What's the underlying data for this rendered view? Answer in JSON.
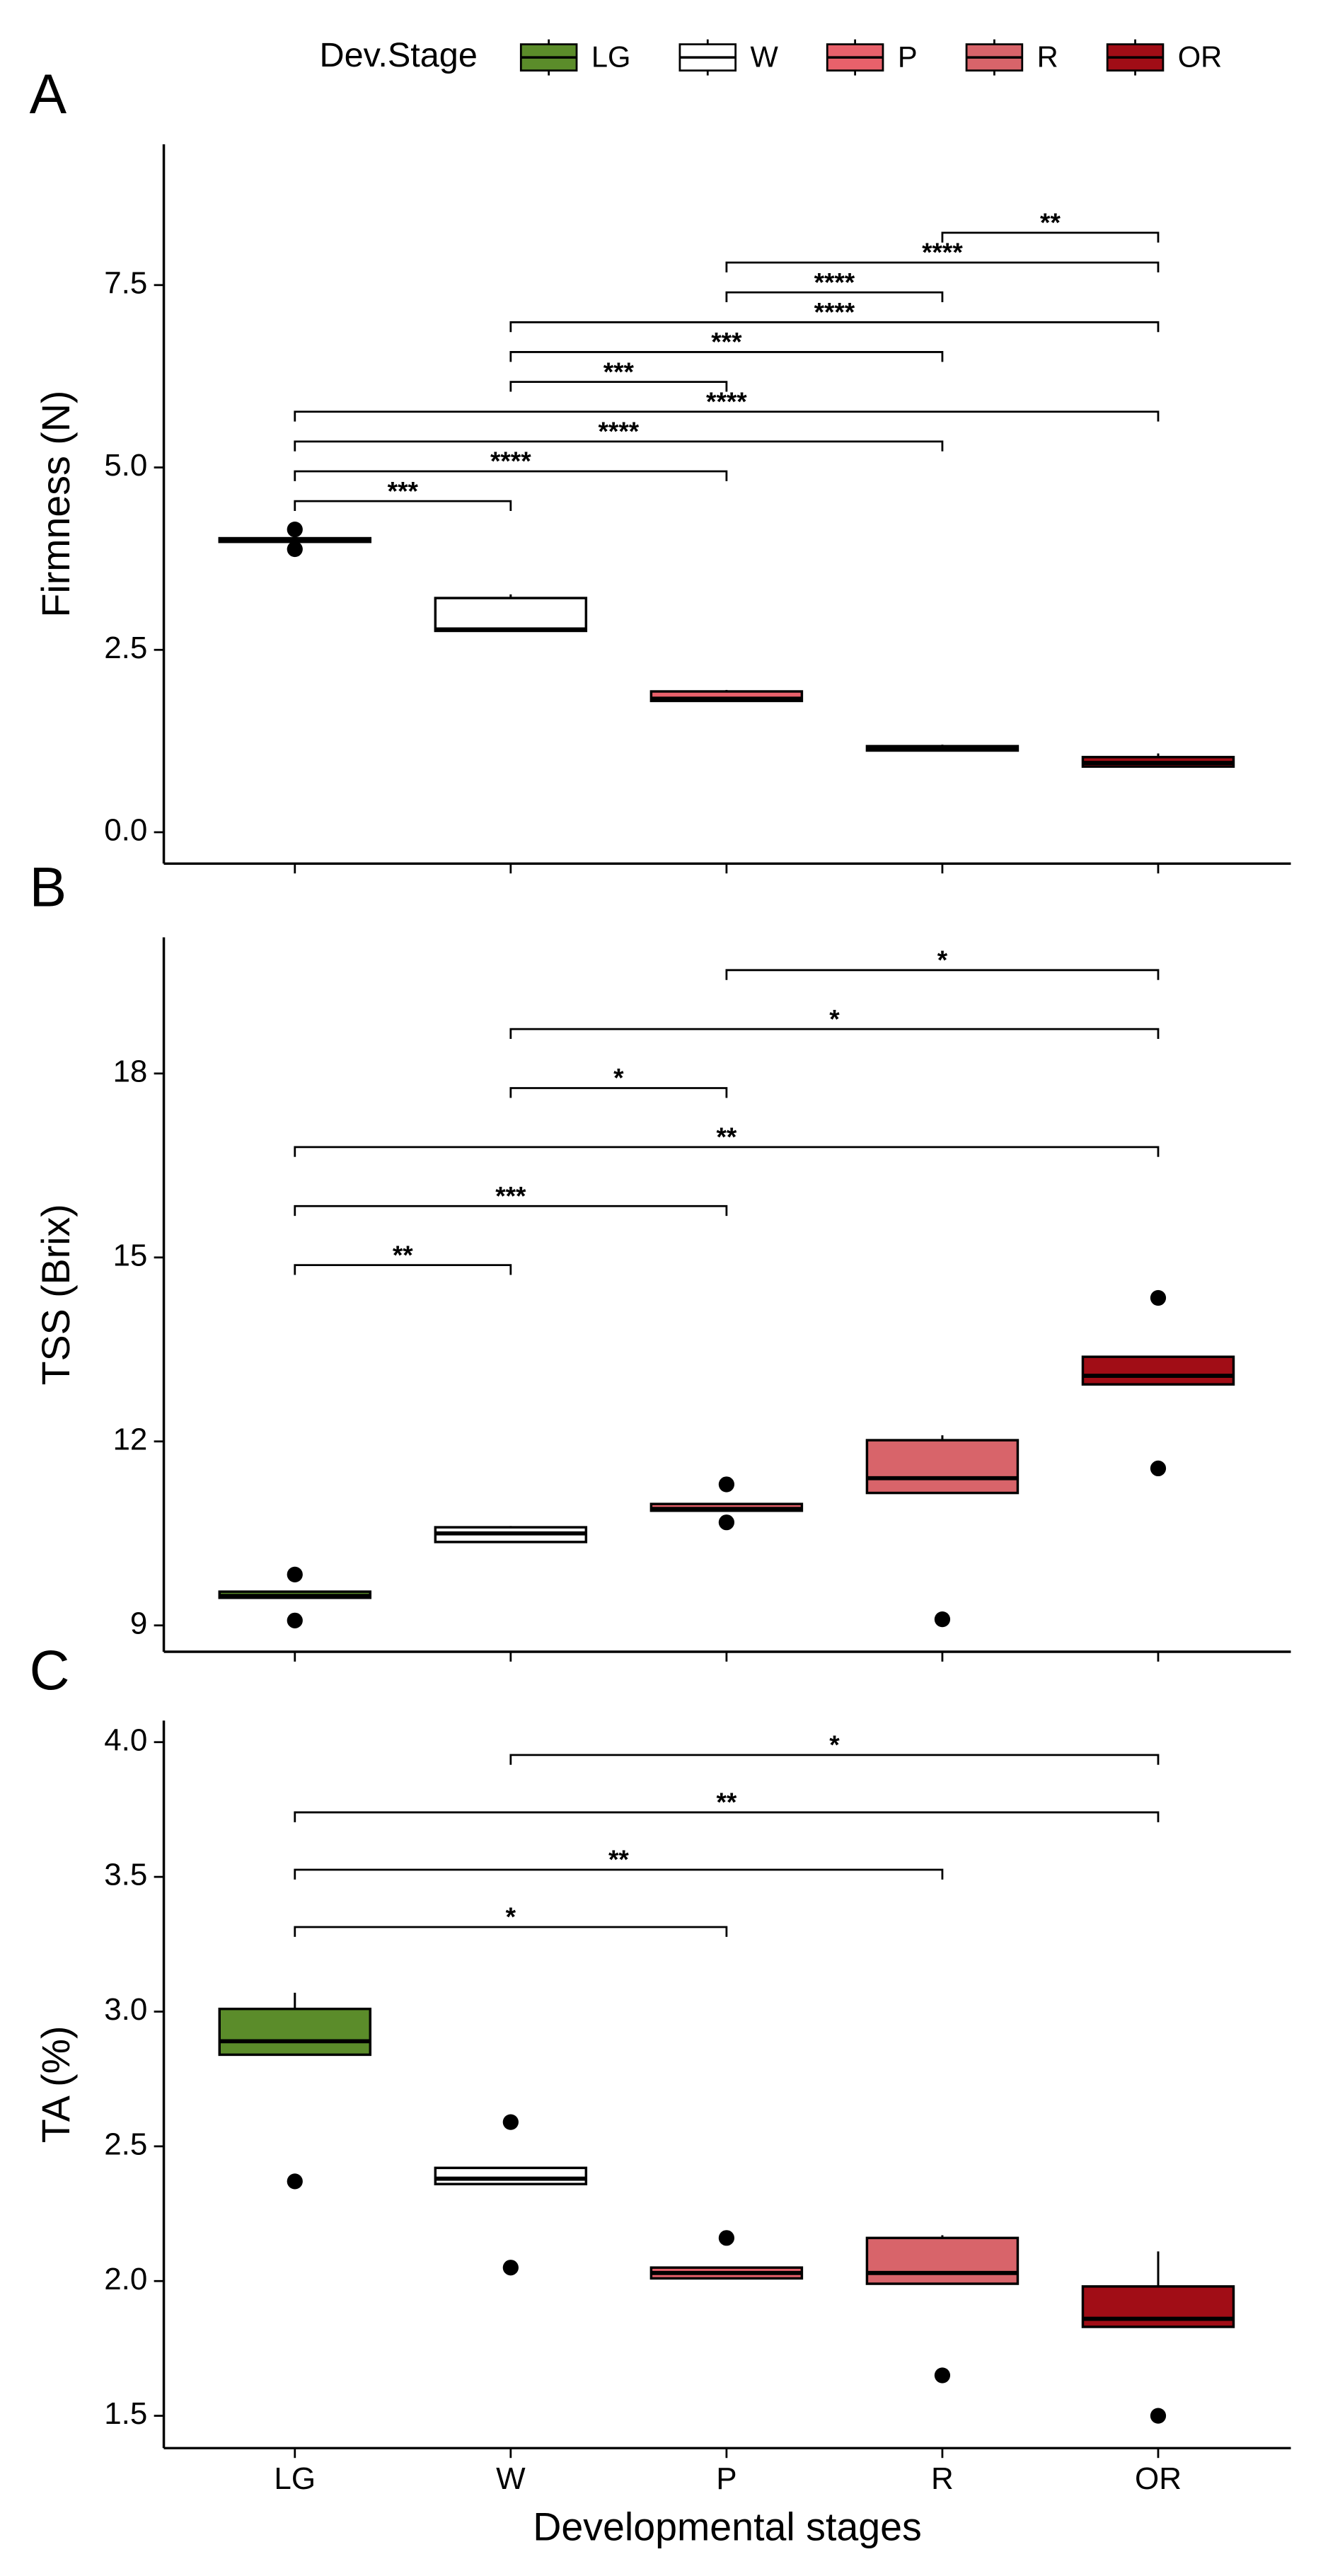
{
  "legend": {
    "title": "Dev.Stage",
    "labels": [
      "LG",
      "W",
      "P",
      "R",
      "OR"
    ],
    "colors": [
      "#5b8c2a",
      "#ffffff",
      "#e8616b",
      "#d8646a",
      "#a10d16"
    ]
  },
  "chart_data": [
    {
      "type": "box",
      "panel": "A",
      "ylabel": "Firmness (N)",
      "ylim": [
        -0.43,
        9.43
      ],
      "yticks": [
        {
          "value": 0,
          "label": "0.0"
        },
        2.5,
        {
          "value": 5,
          "label": "5.0"
        },
        7.5
      ],
      "boxes": [
        {
          "whisker_low": 3.98,
          "q1": 3.98,
          "median": 4.0,
          "q3": 4.03,
          "whisker_high": 4.03,
          "outliers": [
            4.15,
            3.88
          ]
        },
        {
          "whisker_low": 2.76,
          "q1": 2.76,
          "median": 2.78,
          "q3": 3.21,
          "whisker_high": 3.26,
          "outliers": []
        },
        {
          "whisker_low": 1.8,
          "q1": 1.8,
          "median": 1.83,
          "q3": 1.93,
          "whisker_high": 1.95,
          "outliers": []
        },
        {
          "whisker_low": 1.12,
          "q1": 1.12,
          "median": 1.15,
          "q3": 1.18,
          "whisker_high": 1.2,
          "outliers": []
        },
        {
          "whisker_low": 0.9,
          "q1": 0.9,
          "median": 0.95,
          "q3": 1.03,
          "whisker_high": 1.08,
          "outliers": []
        }
      ],
      "brackets": [
        {
          "from": 3,
          "to": 4,
          "label": "**"
        },
        {
          "from": 2,
          "to": 4,
          "label": "****"
        },
        {
          "from": 2,
          "to": 3,
          "label": "****"
        },
        {
          "from": 1,
          "to": 4,
          "label": "****"
        },
        {
          "from": 1,
          "to": 3,
          "label": "***"
        },
        {
          "from": 1,
          "to": 2,
          "label": "***"
        },
        {
          "from": 0,
          "to": 4,
          "label": "****"
        },
        {
          "from": 0,
          "to": 3,
          "label": "****"
        },
        {
          "from": 0,
          "to": 2,
          "label": "****"
        },
        {
          "from": 0,
          "to": 1,
          "label": "***"
        }
      ]
    },
    {
      "type": "box",
      "panel": "B",
      "ylabel": "TSS (Brix)",
      "ylim": [
        8.57,
        20.22
      ],
      "yticks": [
        9,
        12,
        15,
        18
      ],
      "boxes": [
        {
          "whisker_low": 9.45,
          "q1": 9.45,
          "median": 9.48,
          "q3": 9.55,
          "whisker_high": 9.55,
          "outliers": [
            9.83,
            9.08
          ]
        },
        {
          "whisker_low": 10.36,
          "q1": 10.36,
          "median": 10.5,
          "q3": 10.6,
          "whisker_high": 10.62,
          "outliers": []
        },
        {
          "whisker_low": 10.87,
          "q1": 10.87,
          "median": 10.9,
          "q3": 10.98,
          "whisker_high": 10.98,
          "outliers": [
            11.3,
            10.68
          ]
        },
        {
          "whisker_low": 11.16,
          "q1": 11.16,
          "median": 11.4,
          "q3": 12.02,
          "whisker_high": 12.1,
          "outliers": [
            9.1
          ]
        },
        {
          "whisker_low": 12.93,
          "q1": 12.93,
          "median": 13.07,
          "q3": 13.38,
          "whisker_high": 13.38,
          "outliers": [
            14.34,
            11.56
          ]
        }
      ],
      "brackets": [
        {
          "from": 2,
          "to": 4,
          "label": "*"
        },
        {
          "from": 1,
          "to": 4,
          "label": "*"
        },
        {
          "from": 1,
          "to": 2,
          "label": "*"
        },
        {
          "from": 0,
          "to": 4,
          "label": "**"
        },
        {
          "from": 0,
          "to": 2,
          "label": "***"
        },
        {
          "from": 0,
          "to": 1,
          "label": "**"
        }
      ]
    },
    {
      "type": "box",
      "panel": "C",
      "ylabel": "TA (%)",
      "xlabel": "Developmental stages",
      "categories": [
        "LG",
        "W",
        "P",
        "R",
        "OR"
      ],
      "ylim": [
        1.38,
        4.08
      ],
      "yticks": [
        1.5,
        {
          "value": 2,
          "label": "2.0"
        },
        2.5,
        {
          "value": 3,
          "label": "3.0"
        },
        3.5,
        {
          "value": 4,
          "label": "4.0"
        }
      ],
      "boxes": [
        {
          "whisker_low": 2.84,
          "q1": 2.84,
          "median": 2.89,
          "q3": 3.01,
          "whisker_high": 3.07,
          "outliers": [
            2.37
          ]
        },
        {
          "whisker_low": 2.36,
          "q1": 2.36,
          "median": 2.38,
          "q3": 2.42,
          "whisker_high": 2.42,
          "outliers": [
            2.59,
            2.05
          ]
        },
        {
          "whisker_low": 2.01,
          "q1": 2.01,
          "median": 2.03,
          "q3": 2.05,
          "whisker_high": 2.05,
          "outliers": [
            2.16
          ]
        },
        {
          "whisker_low": 1.99,
          "q1": 1.99,
          "median": 2.03,
          "q3": 2.16,
          "whisker_high": 2.17,
          "outliers": [
            1.65
          ]
        },
        {
          "whisker_low": 1.83,
          "q1": 1.83,
          "median": 1.86,
          "q3": 1.98,
          "whisker_high": 2.11,
          "outliers": [
            1.5
          ]
        }
      ],
      "brackets": [
        {
          "from": 1,
          "to": 4,
          "label": "*"
        },
        {
          "from": 0,
          "to": 4,
          "label": "**"
        },
        {
          "from": 0,
          "to": 3,
          "label": "**"
        },
        {
          "from": 0,
          "to": 2,
          "label": "*"
        }
      ]
    }
  ]
}
